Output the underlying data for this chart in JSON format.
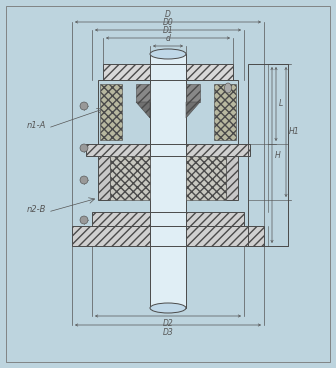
{
  "bg_color": "#bdd4de",
  "line_color": "#4a4a4a",
  "dim_color": "#555555",
  "labels": {
    "D": "D",
    "D0": "D0",
    "D1": "D1",
    "d": "d",
    "D2": "D2",
    "D3": "D3",
    "n1A": "n1-A",
    "n2B": "n2-B",
    "H": "H",
    "H1": "H1",
    "L": "L"
  },
  "figsize": [
    3.36,
    3.68
  ],
  "dpi": 100
}
